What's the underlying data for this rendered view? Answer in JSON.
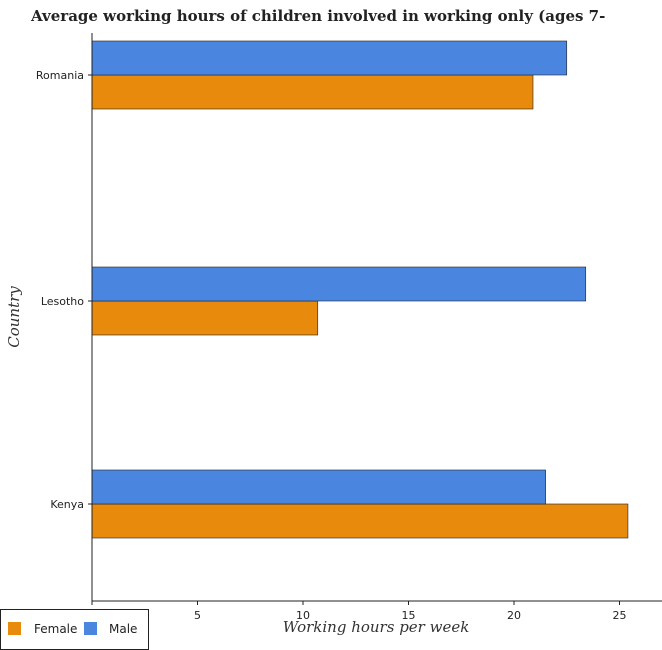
{
  "chart_data": {
    "type": "bar",
    "orientation": "horizontal",
    "title": "Average working hours of children involved in working only (ages 7-",
    "xlabel": "Working hours per week",
    "ylabel": "Country",
    "categories": [
      "Kenya",
      "Lesotho",
      "Romania"
    ],
    "series": [
      {
        "name": "Female",
        "values": [
          25.4,
          10.7,
          20.9
        ],
        "color": "#e88a0c"
      },
      {
        "name": "Male",
        "values": [
          21.5,
          23.4,
          22.5
        ],
        "color": "#4a86e0"
      }
    ],
    "xlim": [
      0,
      26.7
    ],
    "xticks": [
      0,
      5,
      10,
      15,
      20,
      25
    ],
    "xtick_labels": [
      "0",
      "5",
      "10",
      "15",
      "20",
      "25"
    ],
    "grid": false,
    "legend_position": "bottom-left"
  }
}
